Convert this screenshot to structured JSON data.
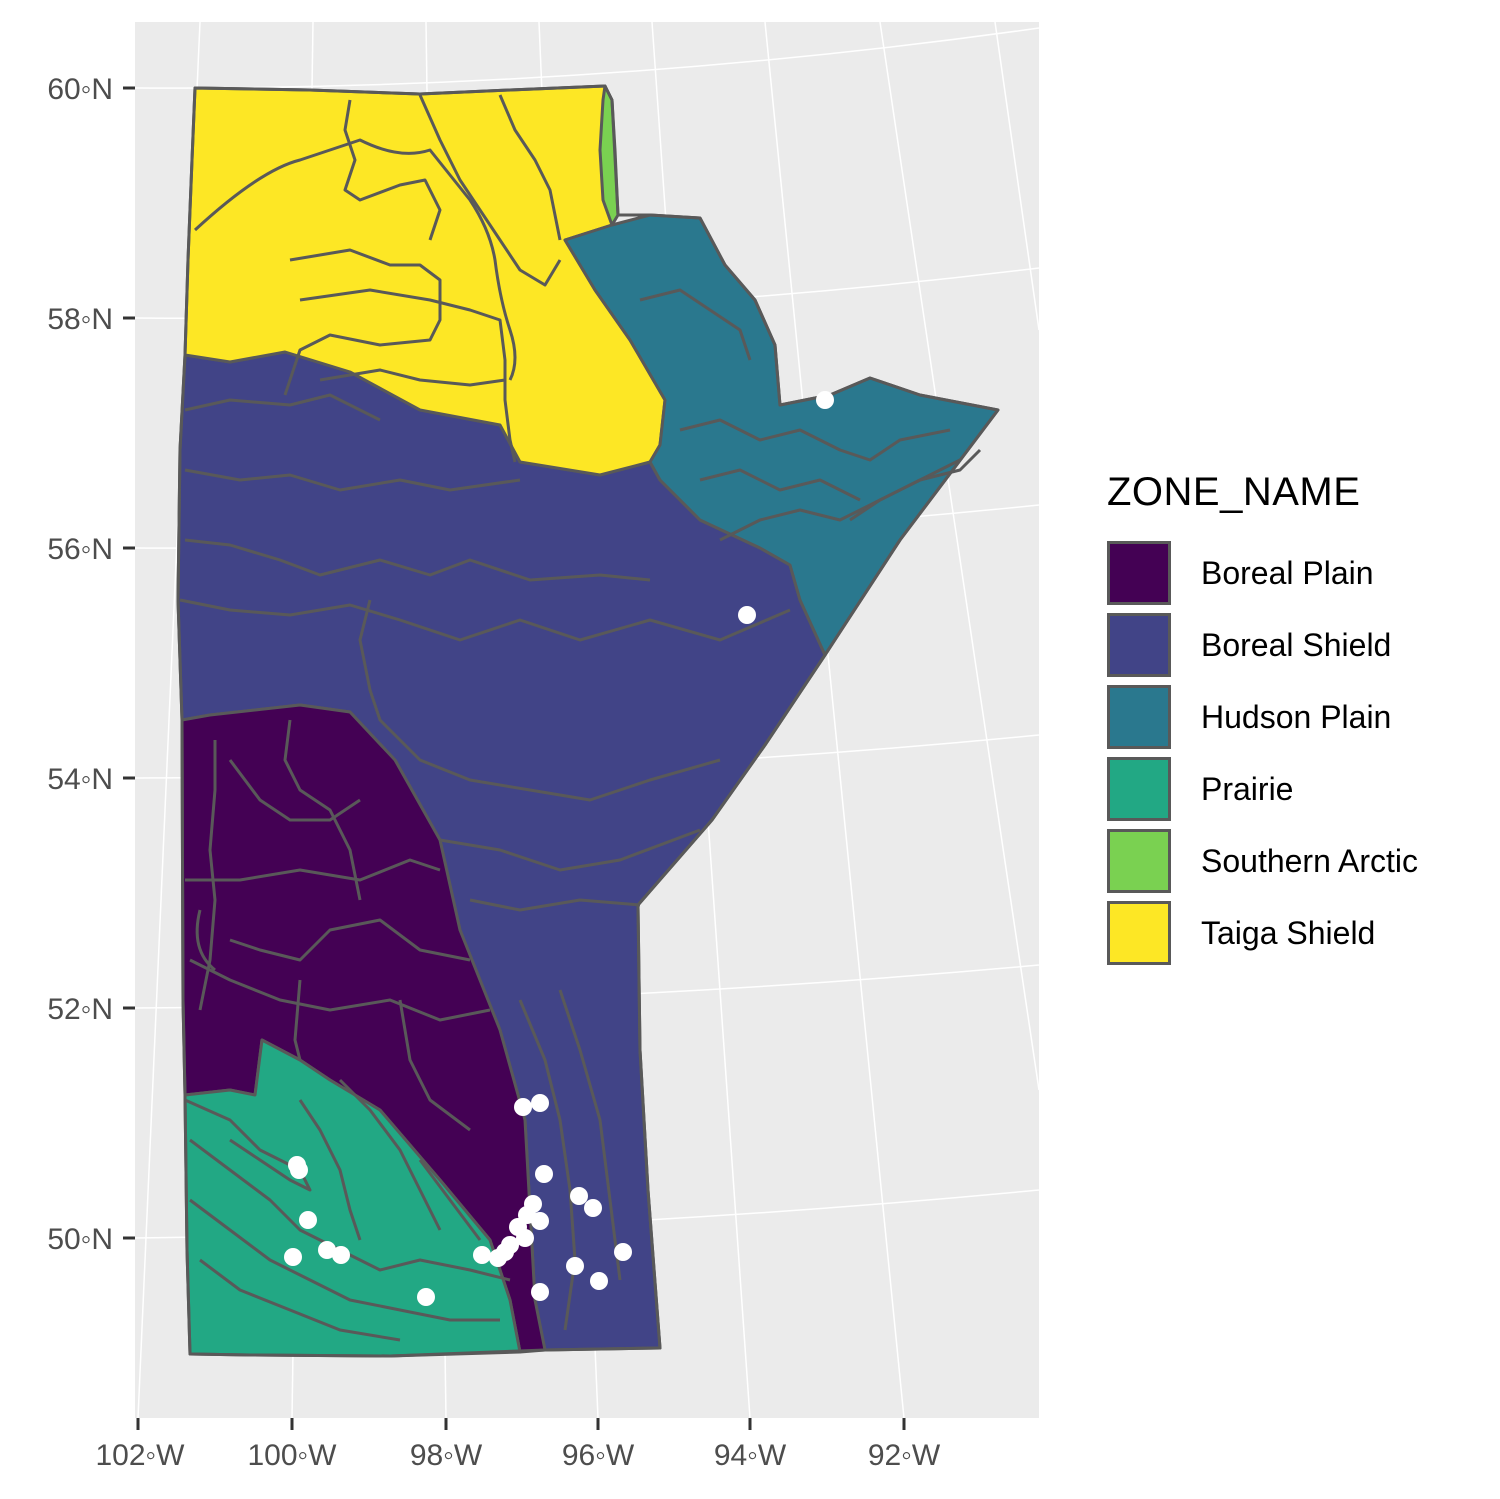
{
  "map": {
    "lat_labels": [
      "60◦N",
      "58◦N",
      "56◦N",
      "54◦N",
      "52◦N",
      "50◦N"
    ],
    "lon_labels": [
      "102◦W",
      "100◦W",
      "98◦W",
      "96◦W",
      "94◦W",
      "92◦W"
    ],
    "panel_color": "#ebebeb",
    "grid_color": "#ffffff",
    "boundary_color": "#595959",
    "point_color": "#ffffff"
  },
  "legend": {
    "title": "ZONE_NAME",
    "items": [
      {
        "label": "Boreal Plain",
        "color": "#440154"
      },
      {
        "label": "Boreal Shield",
        "color": "#414487"
      },
      {
        "label": "Hudson Plain",
        "color": "#2a788e"
      },
      {
        "label": "Prairie",
        "color": "#22a884"
      },
      {
        "label": "Southern Arctic",
        "color": "#7ad151"
      },
      {
        "label": "Taiga Shield",
        "color": "#fde725"
      }
    ]
  }
}
